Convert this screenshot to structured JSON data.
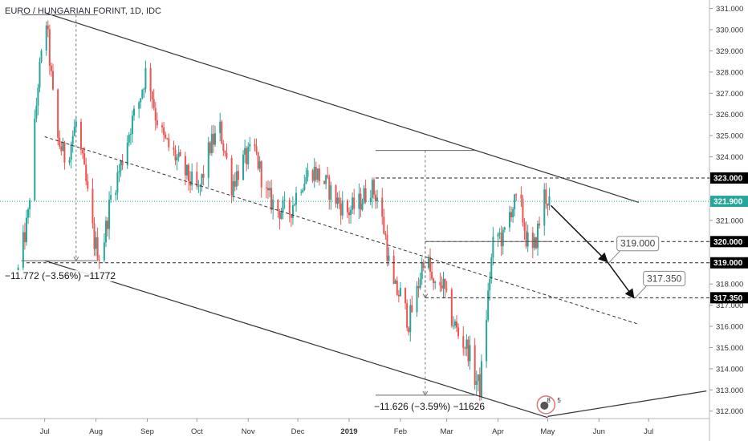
{
  "header": {
    "title": "EURO / HUNGARIAN FORINT, 1D, IDC"
  },
  "colors": {
    "up": "#26a69a",
    "down": "#ef5350",
    "line": "#333333",
    "current": "#26a69a",
    "badge": "#000000",
    "current_badge": "#26a69a"
  },
  "chart_data": {
    "type": "candlestick",
    "title": "EURO / HUNGARIAN FORINT, 1D, IDC",
    "xlabel": "",
    "ylabel": "",
    "ylim": [
      311.65,
      331.4
    ],
    "x_ticks": [
      "Jul",
      "Aug",
      "Sep",
      "Oct",
      "Nov",
      "Dec",
      "2019",
      "Feb",
      "Mar",
      "Apr",
      "May",
      "Jun",
      "Jul"
    ],
    "y_ticks": [
      "312.000",
      "313.000",
      "314.000",
      "315.000",
      "316.000",
      "317.000",
      "318.000",
      "319.000",
      "320.000",
      "321.000",
      "322.000",
      "323.000",
      "324.000",
      "325.000",
      "326.000",
      "327.000",
      "328.000",
      "329.000",
      "330.000",
      "331.000"
    ],
    "grid": false,
    "price_path": [
      [
        "2018-06-15",
        318.6
      ],
      [
        "2018-06-21",
        321.2
      ],
      [
        "2018-06-27",
        327.5
      ],
      [
        "2018-07-02",
        330.4
      ],
      [
        "2018-07-08",
        325.0
      ],
      [
        "2018-07-14",
        323.8
      ],
      [
        "2018-07-20",
        325.6
      ],
      [
        "2018-07-26",
        322.7
      ],
      [
        "2018-07-31",
        320.0
      ],
      [
        "2018-08-04",
        319.2
      ],
      [
        "2018-08-10",
        322.1
      ],
      [
        "2018-08-16",
        323.6
      ],
      [
        "2018-08-22",
        325.5
      ],
      [
        "2018-08-27",
        326.6
      ],
      [
        "2018-09-01",
        328.3
      ],
      [
        "2018-09-06",
        326.0
      ],
      [
        "2018-09-11",
        324.8
      ],
      [
        "2018-09-18",
        324.0
      ],
      [
        "2018-09-25",
        323.1
      ],
      [
        "2018-10-02",
        322.3
      ],
      [
        "2018-10-09",
        324.5
      ],
      [
        "2018-10-15",
        325.3
      ],
      [
        "2018-10-22",
        322.7
      ],
      [
        "2018-10-29",
        323.8
      ],
      [
        "2018-11-05",
        324.3
      ],
      [
        "2018-11-12",
        322.2
      ],
      [
        "2018-11-19",
        321.5
      ],
      [
        "2018-11-26",
        321.4
      ],
      [
        "2018-12-03",
        322.8
      ],
      [
        "2018-12-10",
        323.4
      ],
      [
        "2018-12-17",
        322.8
      ],
      [
        "2018-12-24",
        322.0
      ],
      [
        "2018-12-31",
        321.4
      ],
      [
        "2019-01-07",
        321.8
      ],
      [
        "2019-01-14",
        322.6
      ],
      [
        "2019-01-18",
        322.1
      ],
      [
        "2019-01-23",
        320.2
      ],
      [
        "2019-01-27",
        317.8
      ],
      [
        "2019-02-01",
        317.5
      ],
      [
        "2019-02-06",
        316.2
      ],
      [
        "2019-02-11",
        317.6
      ],
      [
        "2019-02-16",
        319.7
      ],
      [
        "2019-02-21",
        317.7
      ],
      [
        "2019-02-26",
        318.1
      ],
      [
        "2019-03-03",
        316.6
      ],
      [
        "2019-03-08",
        315.6
      ],
      [
        "2019-03-14",
        314.9
      ],
      [
        "2019-03-18",
        313.6
      ],
      [
        "2019-03-21",
        313.1
      ],
      [
        "2019-03-24",
        315.6
      ],
      [
        "2019-03-27",
        318.4
      ],
      [
        "2019-03-30",
        320.5
      ],
      [
        "2019-04-04",
        320.1
      ],
      [
        "2019-04-09",
        321.6
      ],
      [
        "2019-04-14",
        322.0
      ],
      [
        "2019-04-18",
        320.2
      ],
      [
        "2019-04-22",
        319.4
      ],
      [
        "2019-04-26",
        320.9
      ],
      [
        "2019-04-29",
        322.2
      ],
      [
        "2019-05-02",
        321.9
      ]
    ],
    "current_price": 321.9,
    "horizontal_levels": [
      {
        "price": 323.0,
        "label": "323.000"
      },
      {
        "price": 320.0,
        "label": "320.000"
      },
      {
        "price": 319.0,
        "label": "319.000"
      },
      {
        "price": 317.35,
        "label": "317.350"
      }
    ],
    "current_label": "321.900",
    "channel": {
      "upper": [
        [
          "2018-07-01",
          330.8
        ],
        [
          "2019-06-25",
          321.85
        ]
      ],
      "lower": [
        [
          "2018-07-01",
          319.1
        ],
        [
          "2019-05-01",
          311.7
        ]
      ],
      "median": [
        [
          "2018-07-01",
          324.95
        ],
        [
          "2019-06-25",
          316.1
        ]
      ]
    },
    "support_line": [
      [
        "2019-05-01",
        311.75
      ],
      [
        "2019-07-31",
        312.95
      ]
    ],
    "projection": [
      [
        "2019-05-03",
        321.7
      ],
      [
        "2019-06-06",
        319.05
      ],
      [
        "2019-06-22",
        317.35
      ]
    ],
    "target_notes": [
      {
        "date": "2019-06-07",
        "price": 319.0,
        "label": "319.000"
      },
      {
        "date": "2019-06-23",
        "price": 317.35,
        "label": "317.350"
      }
    ],
    "measurements": [
      {
        "label": "−11.772 (−3.56%) −11772",
        "from": [
          "2018-07-01",
          330.7
        ],
        "to": [
          "2018-08-02",
          319.1
        ],
        "span": [
          "2018-06-17",
          "2018-08-02"
        ]
      },
      {
        "label": "−11.626 (−3.59%) −11626",
        "from": [
          "2019-01-17",
          324.3
        ],
        "to": [
          "2019-03-18",
          312.75
        ],
        "span": [
          "2019-01-17",
          "2019-03-18"
        ]
      },
      {
        "label": "",
        "from": [
          "2019-02-16",
          320.0
        ],
        "to": [
          "2019-02-16",
          317.35
        ],
        "span": [
          "2019-02-16",
          "2019-05-03"
        ]
      }
    ],
    "indicator_badge": {
      "date": "2019-04-30",
      "price": 312.3,
      "count": "8",
      "extra": "5"
    }
  }
}
